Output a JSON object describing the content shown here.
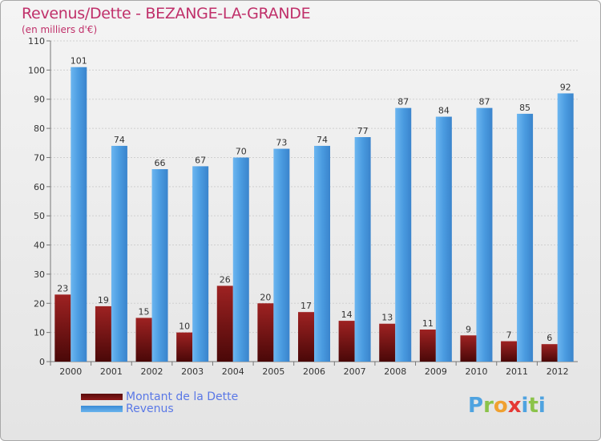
{
  "title": "Revenus/Dette - BEZANGE-LA-GRANDE",
  "subtitle": "(en milliers d'€)",
  "legend": {
    "dette": "Montant de la Dette",
    "revenus": "Revenus"
  },
  "logo_text": "Proxiti",
  "colors": {
    "dette": "#8b1a1a",
    "revenus": "#4a9be0",
    "title": "#c0306a",
    "legend_text": "#5a78e6"
  },
  "chart_data": {
    "type": "bar",
    "title": "Revenus/Dette - BEZANGE-LA-GRANDE",
    "ylabel": "(en milliers d'€)",
    "xlabel": "",
    "categories": [
      "2000",
      "2001",
      "2002",
      "2003",
      "2004",
      "2005",
      "2006",
      "2007",
      "2008",
      "2009",
      "2010",
      "2011",
      "2012"
    ],
    "series": [
      {
        "name": "Montant de la Dette",
        "values": [
          23,
          19,
          15,
          10,
          26,
          20,
          17,
          14,
          13,
          11,
          9,
          7,
          6
        ]
      },
      {
        "name": "Revenus",
        "values": [
          101,
          74,
          66,
          67,
          70,
          73,
          74,
          77,
          87,
          84,
          87,
          85,
          92
        ]
      }
    ],
    "ylim": [
      0,
      110
    ],
    "yticks": [
      0,
      10,
      20,
      30,
      40,
      50,
      60,
      70,
      80,
      90,
      100,
      110
    ],
    "grid": true,
    "legend_position": "bottom-left"
  }
}
